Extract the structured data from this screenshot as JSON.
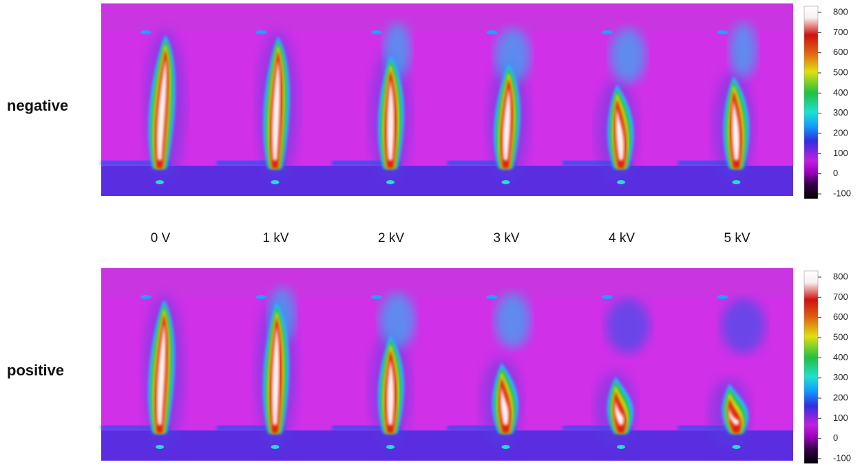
{
  "rows": [
    {
      "label": "negative"
    },
    {
      "label": "positive"
    }
  ],
  "columns": [
    "0 V",
    "1 kV",
    "2 kV",
    "3 kV",
    "4 kV",
    "5 kV"
  ],
  "colorbar": {
    "ticks": [
      800,
      700,
      600,
      500,
      400,
      300,
      200,
      100,
      0,
      -100
    ]
  }
}
